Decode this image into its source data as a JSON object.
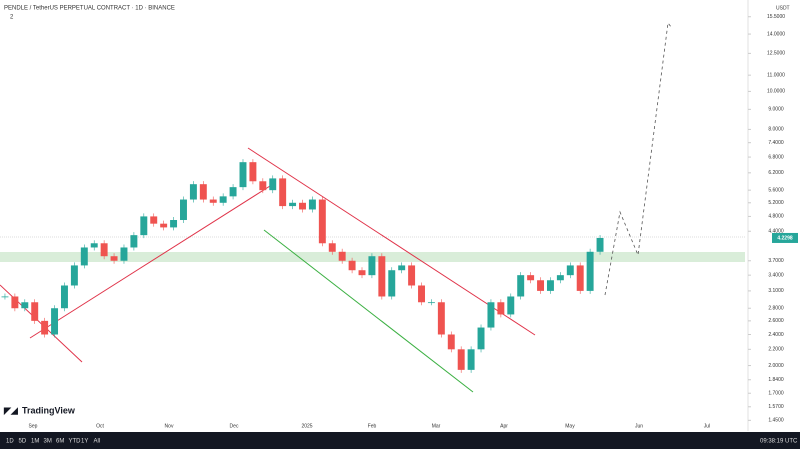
{
  "chart": {
    "type": "candlestick",
    "title": "PENDLE / TetherUS PERPETUAL CONTRACT · 1D · BINANCE",
    "currency": "USDT",
    "indicator_count": "2",
    "brand": "TradingView",
    "log_scale": true,
    "ylim": [
      1.37,
      17.1
    ],
    "yticks": [
      {
        "value": 15.5,
        "label": "15.5000"
      },
      {
        "value": 14,
        "label": "14.0000"
      },
      {
        "value": 12.5,
        "label": "12.5000"
      },
      {
        "value": 11,
        "label": "11.0000"
      },
      {
        "value": 10,
        "label": "10.0000"
      },
      {
        "value": 9,
        "label": "9.0000"
      },
      {
        "value": 8,
        "label": "8.0000"
      },
      {
        "value": 7.4,
        "label": "7.4000"
      },
      {
        "value": 6.8,
        "label": "6.8000"
      },
      {
        "value": 6.2,
        "label": "6.2000"
      },
      {
        "value": 5.6,
        "label": "5.6000"
      },
      {
        "value": 5.2,
        "label": "5.2000"
      },
      {
        "value": 4.8,
        "label": "4.8000"
      },
      {
        "value": 4.4,
        "label": "4.4000"
      },
      {
        "value": 3.7,
        "label": "3.7000"
      },
      {
        "value": 3.4,
        "label": "3.4000"
      },
      {
        "value": 3.1,
        "label": "3.1000"
      },
      {
        "value": 2.8,
        "label": "2.8000"
      },
      {
        "value": 2.6,
        "label": "2.6000"
      },
      {
        "value": 2.4,
        "label": "2.4000"
      },
      {
        "value": 2.2,
        "label": "2.2000"
      },
      {
        "value": 2,
        "label": "2.0000"
      },
      {
        "value": 1.84,
        "label": "1.8400"
      },
      {
        "value": 1.7,
        "label": "1.7000"
      },
      {
        "value": 1.57,
        "label": "1.5700"
      },
      {
        "value": 1.45,
        "label": "1.4500"
      }
    ],
    "current_price": {
      "value": 4.2298,
      "label": "4.2298"
    },
    "time_labels": [
      "Sep",
      "Oct",
      "Nov",
      "Dec",
      "2025",
      "Feb",
      "Mar",
      "Apr",
      "May",
      "Jun",
      "Jul"
    ],
    "up_color": "#26a69a",
    "down_color": "#ef5350",
    "closes": [
      3.0,
      2.8,
      2.9,
      2.6,
      2.4,
      2.8,
      3.2,
      3.6,
      4.0,
      4.1,
      3.8,
      3.7,
      4.0,
      4.3,
      4.8,
      4.6,
      4.5,
      4.7,
      5.3,
      5.8,
      5.3,
      5.2,
      5.4,
      5.7,
      6.6,
      5.9,
      5.6,
      6.0,
      5.1,
      5.2,
      5.0,
      5.3,
      4.1,
      3.9,
      3.7,
      3.5,
      3.4,
      3.8,
      3.0,
      3.5,
      3.6,
      3.2,
      2.9,
      2.9,
      2.4,
      2.2,
      1.95,
      2.2,
      2.5,
      2.9,
      2.7,
      3.0,
      3.4,
      3.3,
      3.1,
      3.3,
      3.4,
      3.6,
      3.1,
      3.9,
      4.23
    ]
  },
  "toolbar": {
    "ranges": [
      "1D",
      "5D",
      "1M",
      "3M",
      "6M",
      "YTD",
      "1Y",
      "All"
    ],
    "clock": "09:38:19 UTC"
  }
}
